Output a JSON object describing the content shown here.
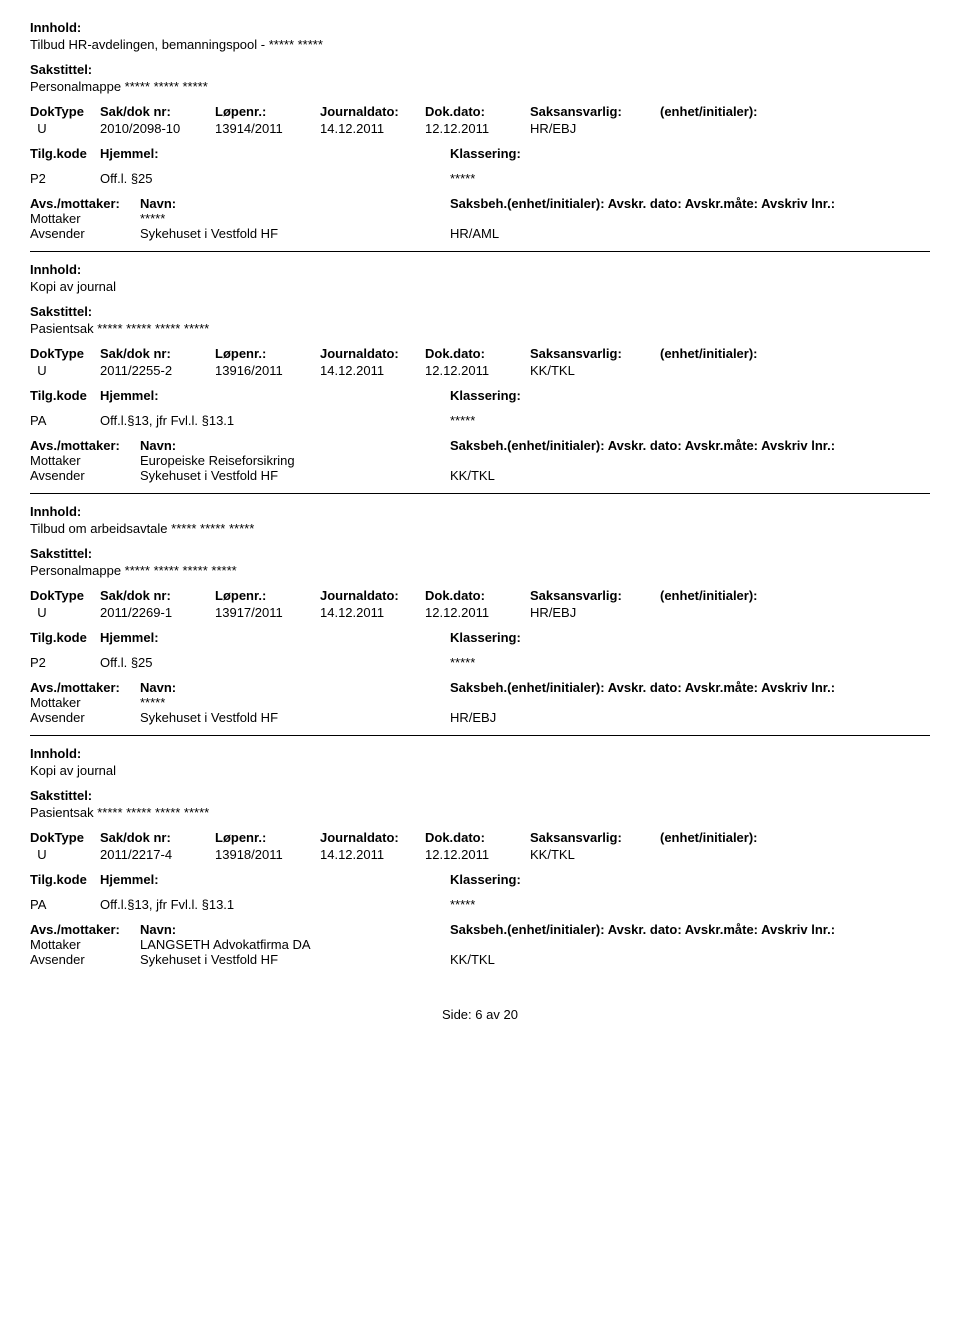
{
  "labels": {
    "innhold": "Innhold:",
    "sakstittel": "Sakstittel:",
    "doktype": "DokType",
    "sakdok": "Sak/dok nr:",
    "lopenr": "Løpenr.:",
    "journaldato": "Journaldato:",
    "dokdato": "Dok.dato:",
    "saksansvarlig": "Saksansvarlig:",
    "enhet": "(enhet/initialer):",
    "tilgkode": "Tilg.kode",
    "hjemmel": "Hjemmel:",
    "klassering": "Klassering:",
    "avsmottaker": "Avs./mottaker:",
    "navn": "Navn:",
    "saksbeh": "Saksbeh.(enhet/initialer): Avskr. dato: Avskr.måte: Avskriv lnr.:",
    "mottaker": "Mottaker",
    "avsender": "Avsender"
  },
  "entries": [
    {
      "innhold": "Tilbud HR-avdelingen, bemanningspool - ***** *****",
      "sakstittel": "Personalmappe ***** ***** *****",
      "doktype": "U",
      "sakdok": "2010/2098-10",
      "lopenr": "13914/2011",
      "journaldato": "14.12.2011",
      "dokdato": "12.12.2011",
      "saksansvarlig": "HR/EBJ",
      "tilgkode": "P2",
      "hjemmel": "Off.l. §25",
      "klassering": "*****",
      "mottaker_navn": "*****",
      "avsender_navn": "Sykehuset i Vestfold HF",
      "avsender_kode": "HR/AML"
    },
    {
      "innhold": "Kopi av journal",
      "sakstittel": "Pasientsak ***** ***** ***** *****",
      "doktype": "U",
      "sakdok": "2011/2255-2",
      "lopenr": "13916/2011",
      "journaldato": "14.12.2011",
      "dokdato": "12.12.2011",
      "saksansvarlig": "KK/TKL",
      "tilgkode": "PA",
      "hjemmel": "Off.l.§13, jfr Fvl.l. §13.1",
      "klassering": "*****",
      "mottaker_navn": "Europeiske Reiseforsikring",
      "avsender_navn": "Sykehuset i Vestfold HF",
      "avsender_kode": "KK/TKL"
    },
    {
      "innhold": "Tilbud om arbeidsavtale ***** ***** *****",
      "sakstittel": "Personalmappe ***** ***** ***** *****",
      "doktype": "U",
      "sakdok": "2011/2269-1",
      "lopenr": "13917/2011",
      "journaldato": "14.12.2011",
      "dokdato": "12.12.2011",
      "saksansvarlig": "HR/EBJ",
      "tilgkode": "P2",
      "hjemmel": "Off.l. §25",
      "klassering": "*****",
      "mottaker_navn": "*****",
      "avsender_navn": "Sykehuset i Vestfold HF",
      "avsender_kode": "HR/EBJ"
    },
    {
      "innhold": "Kopi av journal",
      "sakstittel": "Pasientsak ***** ***** ***** *****",
      "doktype": "U",
      "sakdok": "2011/2217-4",
      "lopenr": "13918/2011",
      "journaldato": "14.12.2011",
      "dokdato": "12.12.2011",
      "saksansvarlig": "KK/TKL",
      "tilgkode": "PA",
      "hjemmel": "Off.l.§13, jfr Fvl.l. §13.1",
      "klassering": "*****",
      "mottaker_navn": "LANGSETH Advokatfirma DA",
      "avsender_navn": "Sykehuset i Vestfold HF",
      "avsender_kode": "KK/TKL"
    }
  ],
  "footer": {
    "page_label": "Side:",
    "page_current": "6",
    "page_sep": "av",
    "page_total": "20"
  }
}
